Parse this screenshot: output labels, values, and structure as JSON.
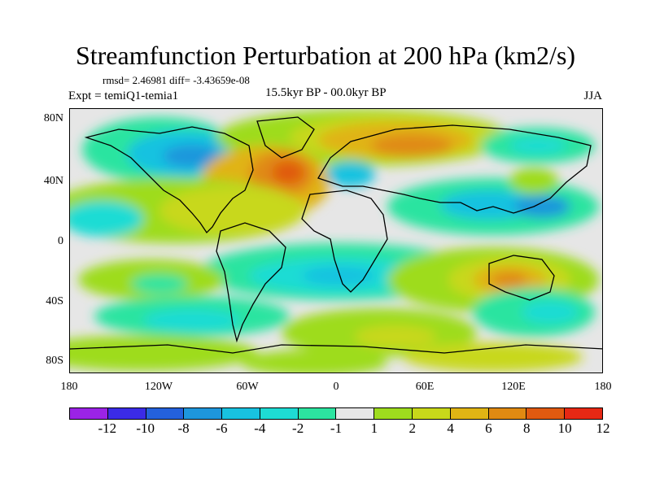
{
  "title": "Streamfunction Perturbation at 200 hPa (km2/s)",
  "stats": "rmsd= 2.46981 diff= -3.43659e-08",
  "experiment": "Expt = temiQ1-temia1",
  "period": "15.5kyr BP - 00.0kyr BP",
  "season": "JJA",
  "y_ticks": [
    "80N",
    "40N",
    "0",
    "40S",
    "80S"
  ],
  "x_ticks": [
    "180",
    "120W",
    "60W",
    "0",
    "60E",
    "120E",
    "180"
  ],
  "colorbar": {
    "labels": [
      "-12",
      "-10",
      "-8",
      "-6",
      "-4",
      "-2",
      "-1",
      "1",
      "2",
      "4",
      "6",
      "8",
      "10",
      "12"
    ],
    "colors": [
      "#9b23e6",
      "#3b2be6",
      "#2461dc",
      "#1e96dc",
      "#18c2e0",
      "#1edcd4",
      "#2ce4a0",
      "#e6e6e6",
      "#9edc1e",
      "#c8d81a",
      "#e0b414",
      "#e08a12",
      "#e05a10",
      "#e62814"
    ]
  }
}
